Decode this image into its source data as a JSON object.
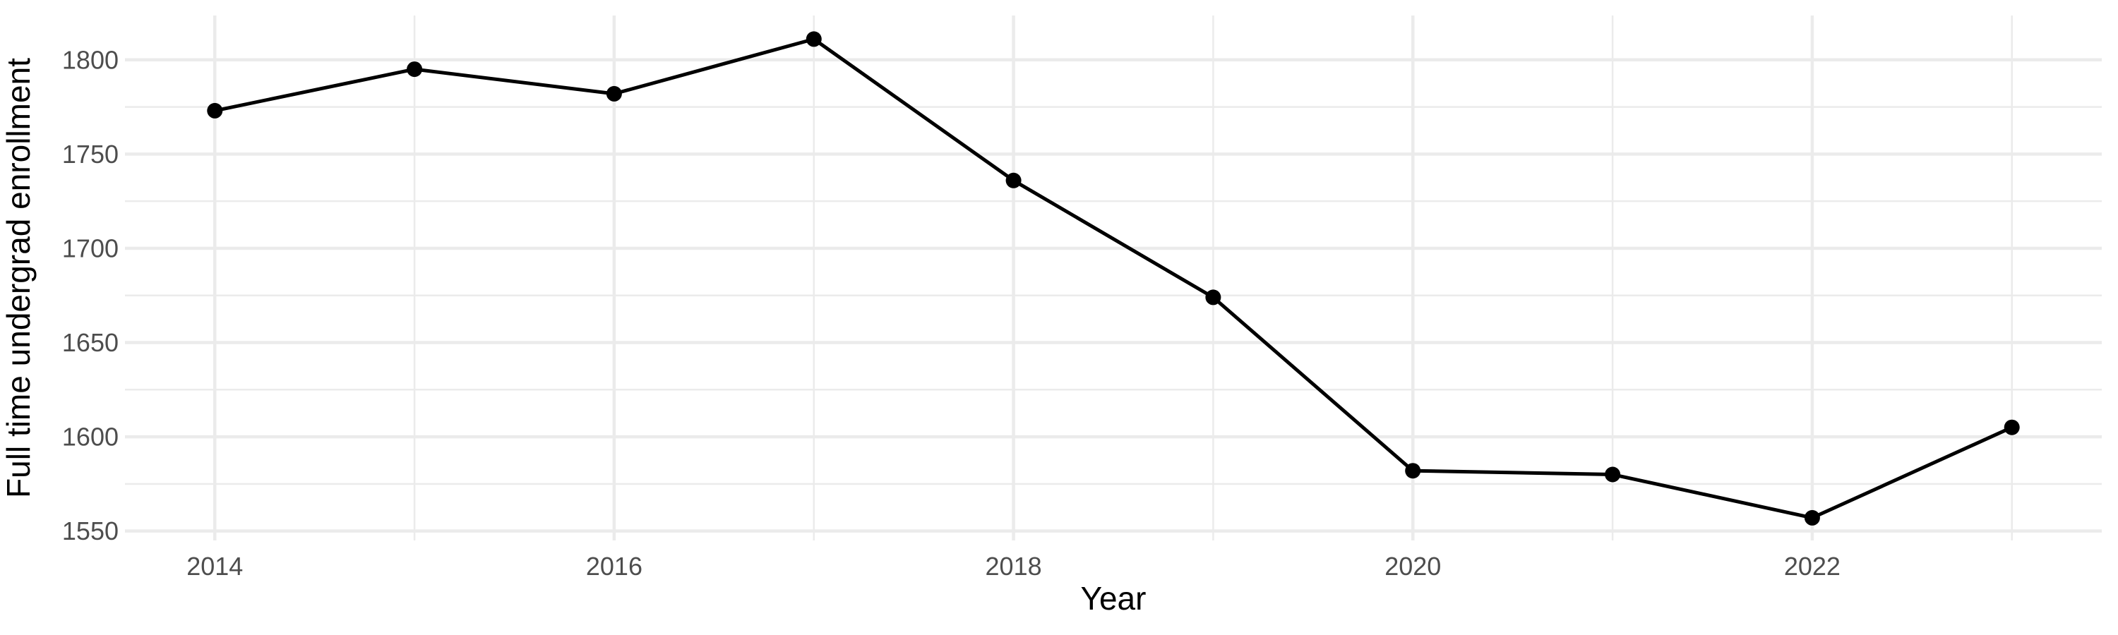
{
  "chart_data": {
    "type": "line",
    "title": "",
    "xlabel": "Year",
    "ylabel": "Full time undergrad enrollment",
    "x": [
      2014,
      2015,
      2016,
      2017,
      2018,
      2019,
      2020,
      2021,
      2022,
      2023
    ],
    "series": [
      {
        "name": "Full time undergrad enrollment",
        "values": [
          1773,
          1795,
          1782,
          1811,
          1736,
          1674,
          1582,
          1580,
          1557,
          1605
        ]
      }
    ],
    "xlim": [
      2013.55,
      2023.45
    ],
    "ylim": [
      1545,
      1823.5
    ],
    "x_major_ticks": [
      2014,
      2016,
      2018,
      2020,
      2022
    ],
    "x_major_tick_labels": [
      "2014",
      "2016",
      "2018",
      "2020",
      "2022"
    ],
    "x_minor_ticks": [
      2015,
      2017,
      2019,
      2021,
      2023
    ],
    "y_major_ticks": [
      1550,
      1600,
      1650,
      1700,
      1750,
      1800
    ],
    "y_major_tick_labels": [
      "1550",
      "1600",
      "1650",
      "1700",
      "1750",
      "1800"
    ],
    "y_minor_ticks": [
      1575,
      1625,
      1675,
      1725,
      1775
    ],
    "grid": "on",
    "legend": "none",
    "colors": {
      "background": "#ffffff",
      "gridline": "#ebebeb",
      "line": "#000000",
      "point": "#000000",
      "tick_label": "#4d4d4d",
      "axis_title": "#000000"
    }
  }
}
